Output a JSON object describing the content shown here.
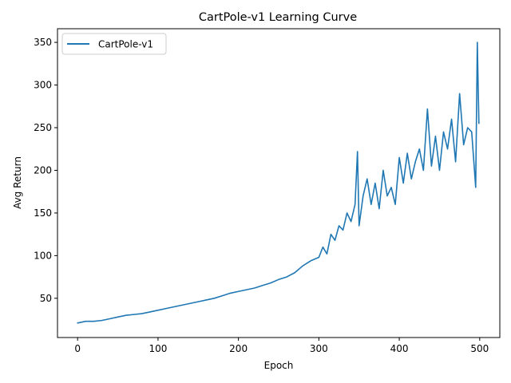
{
  "chart_data": {
    "type": "line",
    "title": "CartPole-v1 Learning Curve",
    "xlabel": "Epoch",
    "ylabel": "Avg Return",
    "xlim": [
      -25,
      525
    ],
    "ylim": [
      4,
      366
    ],
    "xticks": [
      0,
      100,
      200,
      300,
      400,
      500
    ],
    "yticks": [
      50,
      100,
      150,
      200,
      250,
      300,
      350
    ],
    "grid": false,
    "legend_position": "top-left",
    "series": [
      {
        "name": "CartPole-v1",
        "color": "#1f77b4",
        "x": [
          0,
          10,
          20,
          30,
          40,
          50,
          60,
          70,
          80,
          90,
          100,
          110,
          120,
          130,
          140,
          150,
          160,
          170,
          180,
          190,
          200,
          210,
          220,
          230,
          240,
          250,
          260,
          270,
          280,
          290,
          300,
          305,
          310,
          315,
          320,
          325,
          330,
          335,
          340,
          345,
          348,
          350,
          355,
          360,
          365,
          370,
          375,
          380,
          385,
          390,
          395,
          400,
          405,
          410,
          415,
          420,
          425,
          430,
          435,
          440,
          445,
          450,
          455,
          460,
          465,
          470,
          475,
          480,
          485,
          490,
          495,
          497,
          499
        ],
        "y": [
          21,
          23,
          23,
          24,
          26,
          28,
          30,
          31,
          32,
          34,
          36,
          38,
          40,
          42,
          44,
          46,
          48,
          50,
          53,
          56,
          58,
          60,
          62,
          65,
          68,
          72,
          75,
          80,
          88,
          94,
          98,
          110,
          102,
          125,
          118,
          135,
          130,
          150,
          140,
          160,
          222,
          135,
          170,
          190,
          160,
          185,
          155,
          200,
          170,
          180,
          160,
          215,
          185,
          220,
          190,
          210,
          225,
          200,
          272,
          205,
          240,
          200,
          245,
          225,
          260,
          210,
          290,
          230,
          250,
          245,
          180,
          350,
          255
        ]
      }
    ]
  }
}
